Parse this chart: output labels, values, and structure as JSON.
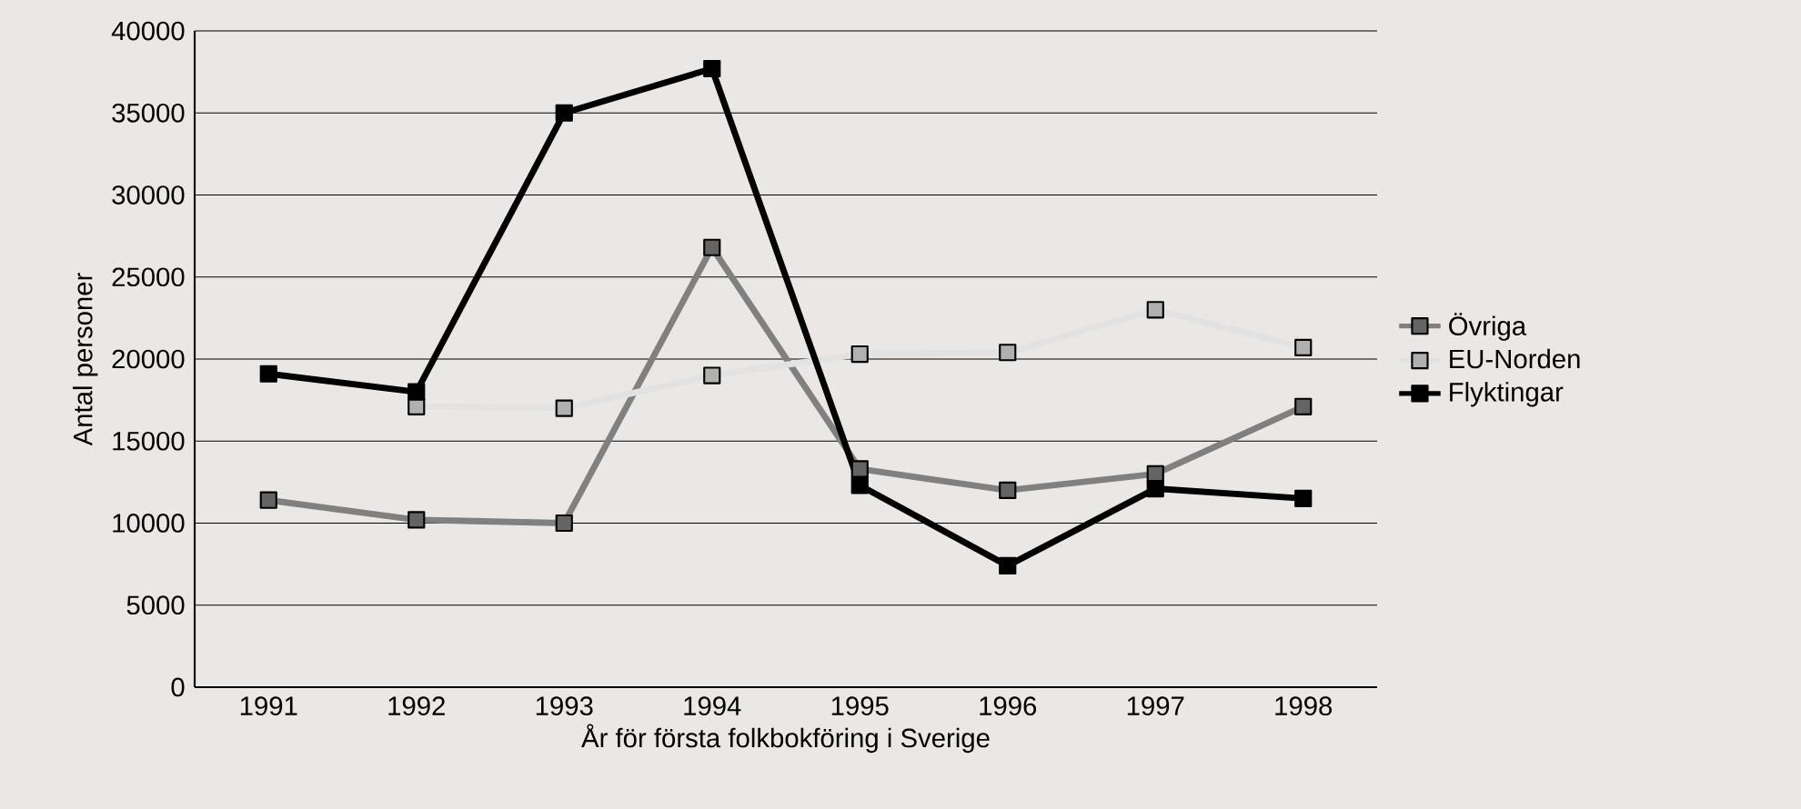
{
  "chart_data": {
    "type": "line",
    "xlabel": "År för första folkbokföring i Sverige",
    "ylabel": "Antal personer",
    "categories": [
      "1991",
      "1992",
      "1993",
      "1994",
      "1995",
      "1996",
      "1997",
      "1998"
    ],
    "series": [
      {
        "name": "Övriga",
        "color": "#808080",
        "values": [
          11400,
          10200,
          10000,
          26800,
          13300,
          12000,
          13000,
          17100
        ]
      },
      {
        "name": "EU-Norden",
        "color": "#e2e2e2",
        "values": [
          null,
          17100,
          17000,
          19000,
          20300,
          20400,
          23000,
          20700
        ]
      },
      {
        "name": "Flyktingar",
        "color": "#000000",
        "values": [
          19100,
          18000,
          35000,
          37700,
          12300,
          7400,
          12100,
          11500
        ]
      }
    ],
    "ylim": [
      0,
      40000
    ],
    "yticks": [
      0,
      5000,
      10000,
      15000,
      20000,
      25000,
      30000,
      35000,
      40000
    ],
    "grid": "y",
    "legend": "right",
    "marker": "square",
    "line_style": "solid"
  }
}
